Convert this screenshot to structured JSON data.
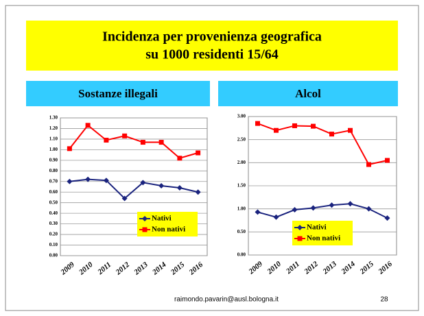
{
  "header": {
    "title": [
      "Incidenza per provenienza geografica",
      "su 1000 residenti 15/64"
    ]
  },
  "chart_data": [
    {
      "type": "line",
      "title": "Sostanze illegali",
      "categories": [
        "2009",
        "2010",
        "2011",
        "2012",
        "2013",
        "2014",
        "2015",
        "2016"
      ],
      "series": [
        {
          "name": "Nativi",
          "color": "#1a237e",
          "marker": "diamond",
          "values": [
            0.7,
            0.72,
            0.71,
            0.54,
            0.69,
            0.66,
            0.64,
            0.6
          ]
        },
        {
          "name": "Non nativi",
          "color": "#ff0000",
          "marker": "square",
          "values": [
            1.01,
            1.23,
            1.09,
            1.13,
            1.07,
            1.07,
            0.92,
            0.97
          ]
        }
      ],
      "ylim": [
        0,
        1.3
      ],
      "yticks": [
        {
          "value": 0,
          "label": "0.00"
        },
        {
          "value": 0.1,
          "label": "0.10"
        },
        {
          "value": 0.2,
          "label": "0.20"
        },
        {
          "value": 0.3,
          "label": "0.30"
        },
        {
          "value": 0.4,
          "label": "0.40"
        },
        {
          "value": 0.5,
          "label": "0.50"
        },
        {
          "value": 0.6,
          "label": "0.60"
        },
        {
          "value": 0.7,
          "label": "0.70"
        },
        {
          "value": 0.8,
          "label": "0.80"
        },
        {
          "value": 0.9,
          "label": "0.90"
        },
        {
          "value": 1.0,
          "label": "1.00"
        },
        {
          "value": 1.1,
          "label": "1.10"
        },
        {
          "value": 1.2,
          "label": "1.20"
        },
        {
          "value": 1.3,
          "label": "1.30"
        }
      ],
      "grid": true,
      "legend": "lower right"
    },
    {
      "type": "line",
      "title": "Alcol",
      "categories": [
        "2009",
        "2010",
        "2011",
        "2012",
        "2013",
        "2014",
        "2015",
        "2016"
      ],
      "series": [
        {
          "name": "Nativi",
          "color": "#1a237e",
          "marker": "diamond",
          "values": [
            0.93,
            0.82,
            0.98,
            1.02,
            1.08,
            1.11,
            1.0,
            0.8
          ]
        },
        {
          "name": "Non nativi",
          "color": "#ff0000",
          "marker": "square",
          "values": [
            2.85,
            2.7,
            2.8,
            2.79,
            2.62,
            2.7,
            1.96,
            2.05
          ]
        }
      ],
      "ylim": [
        0,
        3.0
      ],
      "yticks": [
        {
          "value": 0,
          "label": "0.00"
        },
        {
          "value": 0.5,
          "label": "0.50"
        },
        {
          "value": 1.0,
          "label": "1.00"
        },
        {
          "value": 1.5,
          "label": "1.50"
        },
        {
          "value": 2.0,
          "label": "2.00"
        },
        {
          "value": 2.5,
          "label": "2.50"
        },
        {
          "value": 3.0,
          "label": "3.00"
        }
      ],
      "grid": true,
      "legend": "lower center"
    }
  ],
  "footer": {
    "email": "raimondo.pavarin@ausl.bologna.it",
    "page": "28"
  }
}
